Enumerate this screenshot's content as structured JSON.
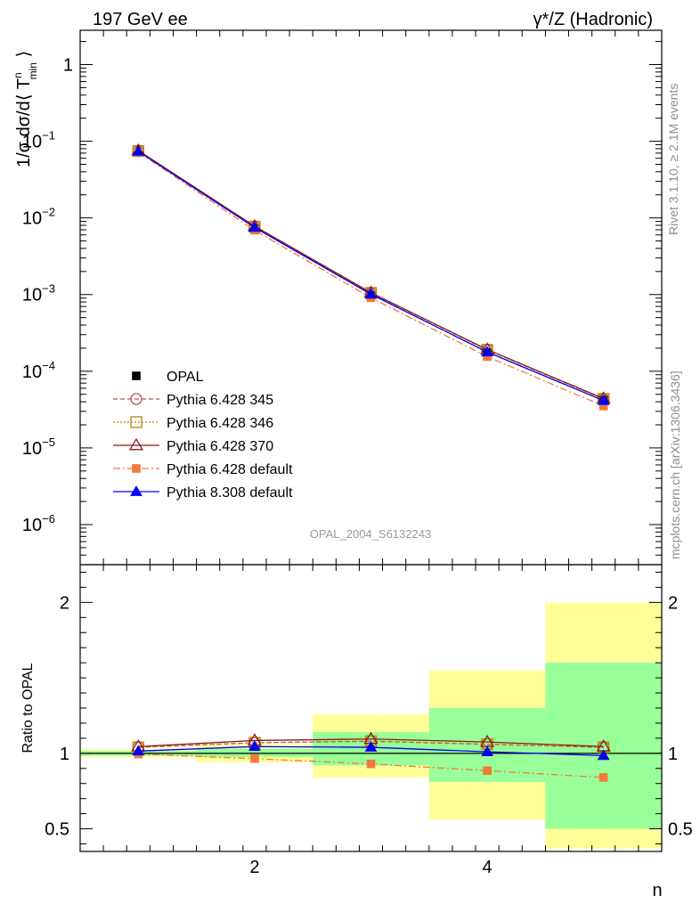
{
  "header": {
    "left": "197 GeV ee",
    "right": "γ*/Z (Hadronic)"
  },
  "side": {
    "rivet": "Rivet 3.1.10, ≥ 2.1M events",
    "mcplots": "mcplots.cern.ch [arXiv:1306.3436]"
  },
  "watermark": "OPAL_2004_S6132243",
  "colors": {
    "opal": "#000000",
    "p345": "#c0504d",
    "p346": "#b8860b",
    "p370": "#8b1a1a",
    "p6def": "#f4793b",
    "p8def": "#0000ee",
    "band_inner": "#99ff99",
    "band_outer": "#ffff99"
  },
  "chart_data": [
    {
      "type": "line",
      "panel": "main",
      "ylabel": "1/σ dσ/d⟨ T^n_min ⟩",
      "ylabel_parts": {
        "pre": "1/σ dσ/d⟨ T",
        "sup": "n",
        "sub": "min",
        "post": " ⟩"
      },
      "xlabel": "n",
      "yscale": "log",
      "xlim": [
        0.5,
        5.5
      ],
      "ylim": [
        3e-07,
        2.8
      ],
      "yticks": [
        {
          "v": 1,
          "label": "1"
        },
        {
          "v": 0.1,
          "label": "10",
          "exp": "−1"
        },
        {
          "v": 0.01,
          "label": "10",
          "exp": "−2"
        },
        {
          "v": 0.001,
          "label": "10",
          "exp": "−3"
        },
        {
          "v": 0.0001,
          "label": "10",
          "exp": "−4"
        },
        {
          "v": 1e-05,
          "label": "10",
          "exp": "−5"
        },
        {
          "v": 1e-06,
          "label": "10",
          "exp": "−6"
        }
      ],
      "x": [
        1,
        2,
        3,
        4,
        5
      ],
      "series": [
        {
          "name": "OPAL",
          "key": "opal",
          "values": [
            0.0725,
            0.0072,
            0.00097,
            0.000175,
            4.2e-05
          ]
        },
        {
          "name": "Pythia 6.428 345",
          "key": "p345",
          "values": [
            0.0745,
            0.0077,
            0.00105,
            0.00019,
            4.35e-05
          ]
        },
        {
          "name": "Pythia 6.428 346",
          "key": "p346",
          "values": [
            0.0745,
            0.0077,
            0.00105,
            0.00019,
            4.35e-05
          ]
        },
        {
          "name": "Pythia 6.428 370",
          "key": "p370",
          "values": [
            0.0755,
            0.0078,
            0.00106,
            0.000192,
            4.4e-05
          ]
        },
        {
          "name": "Pythia 6.428 default",
          "key": "p6def",
          "values": [
            0.0723,
            0.0069,
            0.00091,
            0.000155,
            3.52e-05
          ]
        },
        {
          "name": "Pythia 8.308 default",
          "key": "p8def",
          "values": [
            0.0738,
            0.0075,
            0.00101,
            0.000178,
            4.14e-05
          ]
        }
      ],
      "legend_position": "middle-left"
    },
    {
      "type": "line",
      "panel": "ratio",
      "ylabel": "Ratio to OPAL",
      "xlabel": "n",
      "xlim": [
        0.5,
        5.5
      ],
      "ylim": [
        0.35,
        2.25
      ],
      "xticks": [
        2,
        4
      ],
      "yticks": [
        0.5,
        1,
        2
      ],
      "x": [
        1,
        2,
        3,
        4,
        5
      ],
      "bands": [
        {
          "x0": 0.5,
          "x1": 1.5,
          "outer": [
            0.975,
            1.025
          ],
          "inner": [
            0.985,
            1.015
          ]
        },
        {
          "x0": 1.5,
          "x1": 2.5,
          "outer": [
            0.94,
            1.055
          ],
          "inner": [
            0.975,
            1.03
          ]
        },
        {
          "x0": 2.5,
          "x1": 3.5,
          "outer": [
            0.84,
            1.26
          ],
          "inner": [
            0.92,
            1.14
          ]
        },
        {
          "x0": 3.5,
          "x1": 4.5,
          "outer": [
            0.56,
            1.55
          ],
          "inner": [
            0.81,
            1.3
          ]
        },
        {
          "x0": 4.5,
          "x1": 5.5,
          "outer": [
            0.37,
            2.0
          ],
          "inner": [
            0.5,
            1.6
          ]
        }
      ],
      "series": [
        {
          "name": "Pythia 6.428 345",
          "key": "p345",
          "values": [
            1.04,
            1.07,
            1.08,
            1.06,
            1.04
          ]
        },
        {
          "name": "Pythia 6.428 346",
          "key": "p346",
          "values": [
            1.04,
            1.07,
            1.08,
            1.06,
            1.04
          ]
        },
        {
          "name": "Pythia 6.428 370",
          "key": "p370",
          "values": [
            1.045,
            1.085,
            1.095,
            1.075,
            1.045
          ]
        },
        {
          "name": "Pythia 6.428 default",
          "key": "p6def",
          "values": [
            0.995,
            0.965,
            0.93,
            0.885,
            0.84
          ]
        },
        {
          "name": "Pythia 8.308 default",
          "key": "p8def",
          "values": [
            1.015,
            1.045,
            1.04,
            1.01,
            0.985
          ]
        }
      ]
    }
  ]
}
